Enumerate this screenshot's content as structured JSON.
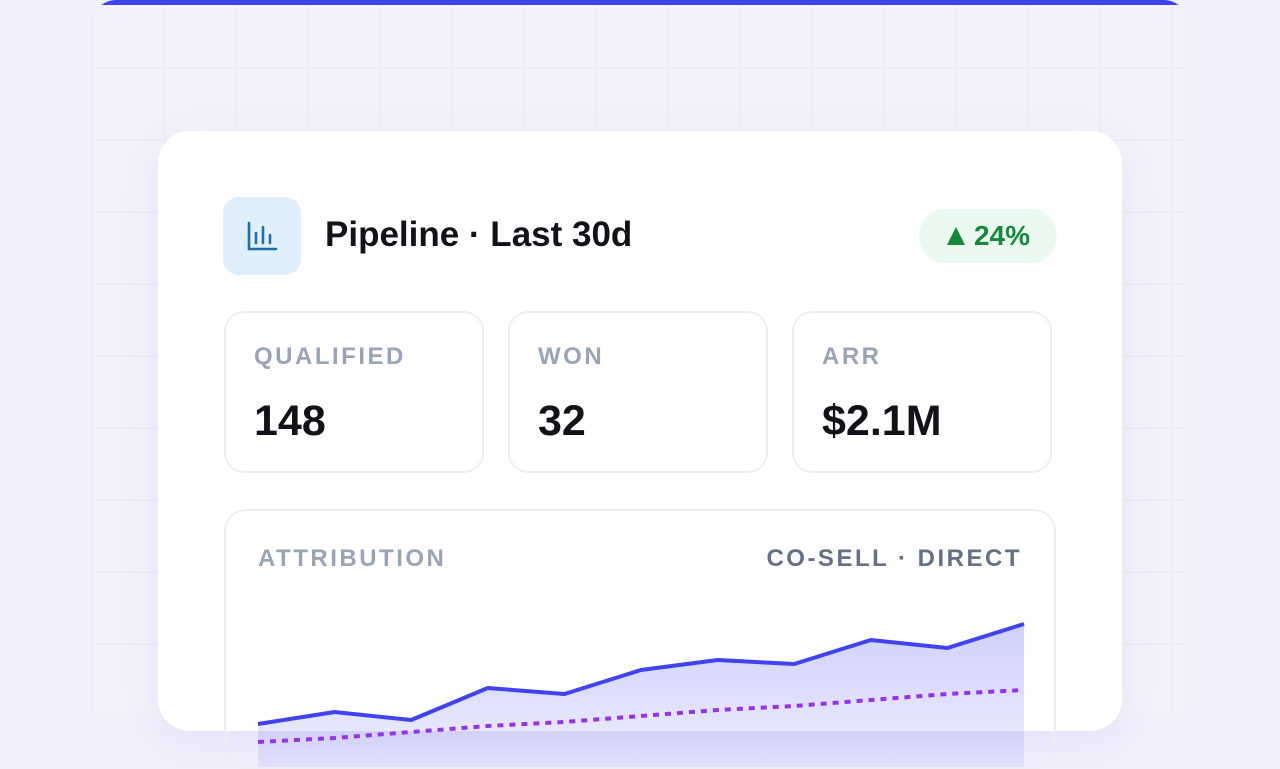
{
  "header": {
    "title": "Pipeline · Last 30d",
    "badge": "24%"
  },
  "stats": [
    {
      "label": "QUALIFIED",
      "value": "148"
    },
    {
      "label": "WON",
      "value": "32"
    },
    {
      "label": "ARR",
      "value": "$2.1M"
    }
  ],
  "chart_data": {
    "type": "line",
    "title": "ATTRIBUTION",
    "legend": "CO-SELL · DIRECT",
    "ylim": [
      0,
      100
    ],
    "series": [
      {
        "color": "#4044f0",
        "area": true,
        "dash": false,
        "values": [
          39,
          45,
          41,
          57,
          54,
          66,
          71,
          69,
          81,
          77,
          89
        ]
      },
      {
        "color": "#9333ea",
        "area": false,
        "dash": true,
        "values": [
          30,
          32,
          35,
          38,
          40,
          43,
          46,
          48,
          51,
          54,
          56
        ]
      }
    ]
  }
}
